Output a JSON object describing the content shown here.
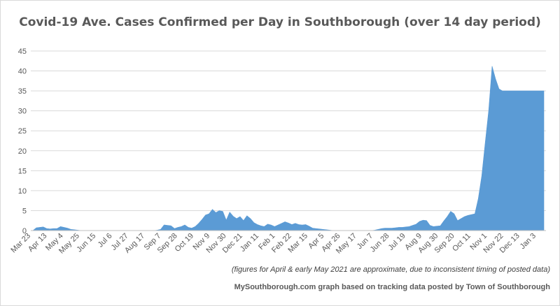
{
  "chart_data": {
    "type": "area",
    "title": "Covid-19 Ave. Cases Confirmed per Day in Southborough (over 14 day period)",
    "xlabel": "",
    "ylabel": "",
    "ylim": [
      0,
      45
    ],
    "yticks": [
      0,
      5,
      10,
      15,
      20,
      25,
      30,
      35,
      40,
      45
    ],
    "grid": "horizontal",
    "legend": "none",
    "color": "#5b9bd5",
    "x_tick_labels": [
      "Mar 23",
      "Apr 13",
      "May 4",
      "May 25",
      "Jun 15",
      "Jul 6",
      "Jul 27",
      "Aug 17",
      "Sep 7",
      "Sep 28",
      "Oct 19",
      "Nov 9",
      "Nov 30",
      "Dec 21",
      "Jan 11",
      "Feb 1",
      "Feb 22",
      "Mar 15",
      "Apr 5",
      "Apr 26",
      "May 17",
      "Jun 7",
      "Jun 28",
      "Jul 19",
      "Aug 9",
      "Aug 30",
      "Sep 20",
      "Oct 11",
      "Nov 1",
      "Nov 22",
      "Dec 13",
      "Jan 3"
    ],
    "x": [
      0,
      1,
      2,
      3,
      4,
      5,
      6,
      7,
      8,
      9,
      10,
      11,
      12,
      13,
      14,
      15,
      16,
      17,
      18,
      19,
      20,
      21,
      22,
      23,
      24,
      25,
      26,
      27,
      28,
      29,
      30,
      31,
      32,
      33,
      34,
      35,
      36,
      37,
      38,
      39,
      40,
      41,
      42,
      43,
      44,
      45,
      46,
      47,
      48,
      49,
      50,
      51,
      52,
      53,
      54,
      55,
      56,
      57,
      58,
      59,
      60,
      61,
      62,
      63,
      64,
      65,
      66,
      67,
      68,
      69,
      70,
      71,
      72,
      73,
      74,
      75,
      76,
      77,
      78,
      79,
      80,
      81,
      82,
      83,
      84,
      85,
      86,
      87,
      88,
      89,
      90,
      91,
      92
    ],
    "values": [
      0,
      0.7,
      0.8,
      0.9,
      0.5,
      0.4,
      0.5,
      0.5,
      1.0,
      0.8,
      0.6,
      0.3,
      0.2,
      0.1,
      0,
      0,
      0,
      0,
      0,
      0,
      0,
      0,
      0,
      0,
      0,
      0,
      0,
      0,
      0,
      0,
      0,
      0,
      0,
      0,
      0,
      0,
      0.1,
      0.3,
      1.4,
      1.3,
      1.2,
      0.5,
      0.8,
      1.0,
      1.4,
      0.8,
      0.6,
      1.0,
      1.8,
      2.8,
      3.9,
      4.2,
      5.3,
      4.5,
      5.0,
      4.8,
      2.6,
      4.6,
      3.6,
      3.0,
      3.5,
      2.5,
      3.7,
      3.0,
      2.0,
      1.5,
      1.2,
      1.0,
      1.6,
      1.4,
      1.0,
      1.4,
      1.8,
      2.2,
      1.9,
      1.5,
      1.8,
      1.5,
      1.4,
      1.5,
      1.1,
      0.6,
      0.5,
      0.4,
      0.3,
      0.2,
      0.1,
      0,
      0,
      0,
      0,
      0,
      0
    ]
  },
  "chart_data_note": {
    "text": "(figures for April & early May 2021 are approximate, due to inconsistent timing of posted data)"
  },
  "credit": {
    "text": "MySouthborough.com graph based on tracking data posted by Town of Southborough"
  },
  "series_tail": {
    "x": [
      93,
      96,
      99,
      102,
      105,
      108,
      111,
      114,
      117,
      120,
      121,
      124,
      127,
      130,
      133,
      136,
      139,
      142,
      145,
      148,
      151,
      154,
      157,
      160,
      163,
      166,
      169,
      172,
      175,
      178,
      181,
      184,
      187,
      190,
      193,
      196,
      199,
      202,
      205,
      208,
      211,
      214,
      217,
      220,
      223,
      226,
      229,
      232,
      235,
      238,
      241,
      244,
      247,
      250,
      253,
      256
    ],
    "values": [
      0,
      0,
      0,
      0,
      0,
      0,
      0.1,
      0.3,
      0.5,
      0.6,
      0.6,
      0.6,
      0.7,
      0.8,
      0.8,
      0.9,
      1.0,
      1.3,
      1.6,
      2.3,
      2.6,
      2.5,
      1.3,
      1.0,
      1.1,
      1.2,
      2.4,
      3.5,
      4.8,
      4.2,
      2.5,
      3.0,
      3.5,
      3.8,
      4.0,
      4.2,
      8.0,
      13.7,
      22.0,
      30.0,
      41.2,
      38.0,
      35.5,
      35.0,
      35.0,
      35.0,
      35.0,
      35.0,
      35.0,
      35.0,
      35.0,
      35.0,
      35.0,
      35.0,
      35.0,
      35.0
    ]
  }
}
